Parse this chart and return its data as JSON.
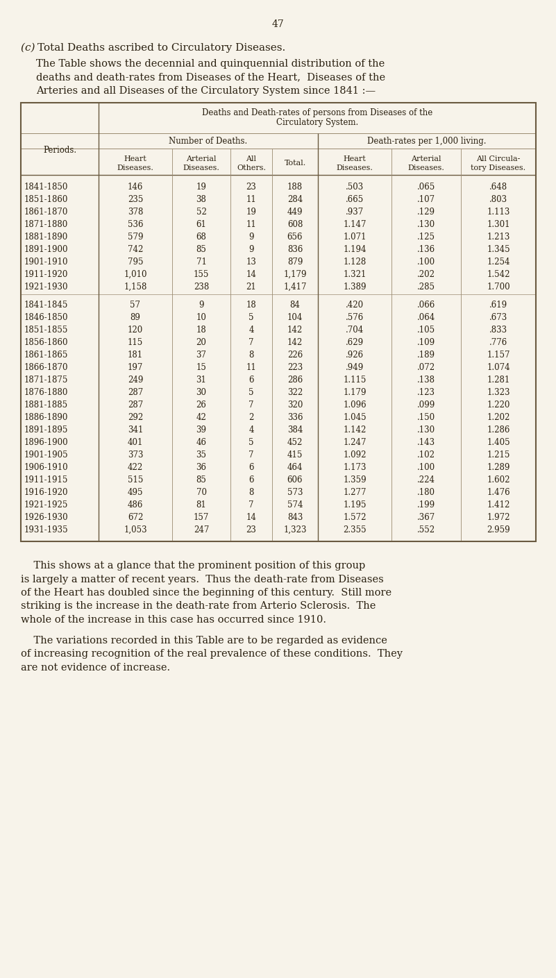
{
  "page_number": "47",
  "bg_color": "#f7f3ea",
  "text_color": "#2a2010",
  "table_border_color": "#6a5a40",
  "table_line_color": "#9a8a70",
  "title_prefix": "(c) ",
  "title_main": "Total Deaths ascribed to Circulatory Diseases.",
  "intro_text_lines": [
    "The Table shows the decennial and quinquennial distribution of the",
    "deaths and death-rates from Diseases of the Heart,  Diseases of the",
    "Arteries and all Diseases of the Circulatory System since 1841 :—"
  ],
  "table_header_line1": "Deaths and Death-rates of persons from Diseases of the",
  "table_header_line2": "Circulatory System.",
  "group1_label": "Number of Deaths.",
  "group2_label": "Death-rates per 1,000 living.",
  "periods_label": "Periods.",
  "col_headers_group1": [
    "Heart\nDiseases.",
    "Arterial\nDiseases.",
    "All\nOthers.",
    "Total."
  ],
  "col_headers_group2": [
    "Heart\nDiseases.",
    "Arterial\nDiseases.",
    "All Circula-\ntory Diseases."
  ],
  "decennial_rows": [
    [
      "1841-1850",
      "146",
      "19",
      "23",
      "188",
      ".503",
      ".065",
      ".648"
    ],
    [
      "1851-1860",
      "235",
      "38",
      "11",
      "284",
      ".665",
      ".107",
      ".803"
    ],
    [
      "1861-1870",
      "378",
      "52",
      "19",
      "449",
      ".937",
      ".129",
      "1.113"
    ],
    [
      "1871-1880",
      "536",
      "61",
      "11",
      "608",
      "1.147",
      ".130",
      "1.301"
    ],
    [
      "1881-1890",
      "579",
      "68",
      "9",
      "656",
      "1.071",
      ".125",
      "1.213"
    ],
    [
      "1891-1900",
      "742",
      "85",
      "9",
      "836",
      "1.194",
      ".136",
      "1.345"
    ],
    [
      "1901-1910",
      "795",
      "71",
      "13",
      "879",
      "1.128",
      ".100",
      "1.254"
    ],
    [
      "1911-1920",
      "1,010",
      "155",
      "14",
      "1,179",
      "1.321",
      ".202",
      "1.542"
    ],
    [
      "1921-1930",
      "1,158",
      "238",
      "21",
      "1,417",
      "1.389",
      ".285",
      "1.700"
    ]
  ],
  "quinquennial_rows": [
    [
      "1841-1845",
      "57",
      "9",
      "18",
      "84",
      ".420",
      ".066",
      ".619"
    ],
    [
      "1846-1850",
      "89",
      "10",
      "5",
      "104",
      ".576",
      ".064",
      ".673"
    ],
    [
      "1851-1855",
      "120",
      "18",
      "4",
      "142",
      ".704",
      ".105",
      ".833"
    ],
    [
      "1856-1860",
      "115",
      "20",
      "7",
      "142",
      ".629",
      ".109",
      ".776"
    ],
    [
      "1861-1865",
      "181",
      "37",
      "8",
      "226",
      ".926",
      ".189",
      "1.157"
    ],
    [
      "1866-1870",
      "197",
      "15",
      "11",
      "223",
      ".949",
      ".072",
      "1.074"
    ],
    [
      "1871-1875",
      "249",
      "31",
      "6",
      "286",
      "1.115",
      ".138",
      "1.281"
    ],
    [
      "1876-1880",
      "287",
      "30",
      "5",
      "322",
      "1.179",
      ".123",
      "1.323"
    ],
    [
      "1881-1885",
      "287",
      "26",
      "7",
      "320",
      "1.096",
      ".099",
      "1.220"
    ],
    [
      "1886-1890",
      "292",
      "42",
      "2",
      "336",
      "1.045",
      ".150",
      "1.202"
    ],
    [
      "1891-1895",
      "341",
      "39",
      "4",
      "384",
      "1.142",
      ".130",
      "1.286"
    ],
    [
      "1896-1900",
      "401",
      "46",
      "5",
      "452",
      "1.247",
      ".143",
      "1.405"
    ],
    [
      "1901-1905",
      "373",
      "35",
      "7",
      "415",
      "1.092",
      ".102",
      "1.215"
    ],
    [
      "1906-1910",
      "422",
      "36",
      "6",
      "464",
      "1.173",
      ".100",
      "1.289"
    ],
    [
      "1911-1915",
      "515",
      "85",
      "6",
      "606",
      "1.359",
      ".224",
      "1.602"
    ],
    [
      "1916-1920",
      "495",
      "70",
      "8",
      "573",
      "1.277",
      ".180",
      "1.476"
    ],
    [
      "1921-1925",
      "486",
      "81",
      "7",
      "574",
      "1.195",
      ".199",
      "1.412"
    ],
    [
      "1926-1930",
      "672",
      "157",
      "14",
      "843",
      "1.572",
      ".367",
      "1.972"
    ],
    [
      "1931-1935",
      "1,053",
      "247",
      "23",
      "1,323",
      "2.355",
      ".552",
      "2.959"
    ]
  ],
  "footer_para1": [
    "    This shows at a glance that the prominent position of this group",
    "is largely a matter of recent years.  Thus the death-rate from Diseases",
    "of the Heart has doubled since the beginning of this century.  Still more",
    "striking is the increase in the death-rate from Arterio Sclerosis.  The",
    "whole of the increase in this case has occurred since 1910."
  ],
  "footer_para2": [
    "    The variations recorded in this Table are to be regarded as evidence",
    "of increasing recognition of the real prevalence of these conditions.  They",
    "are not evidence of increase."
  ]
}
